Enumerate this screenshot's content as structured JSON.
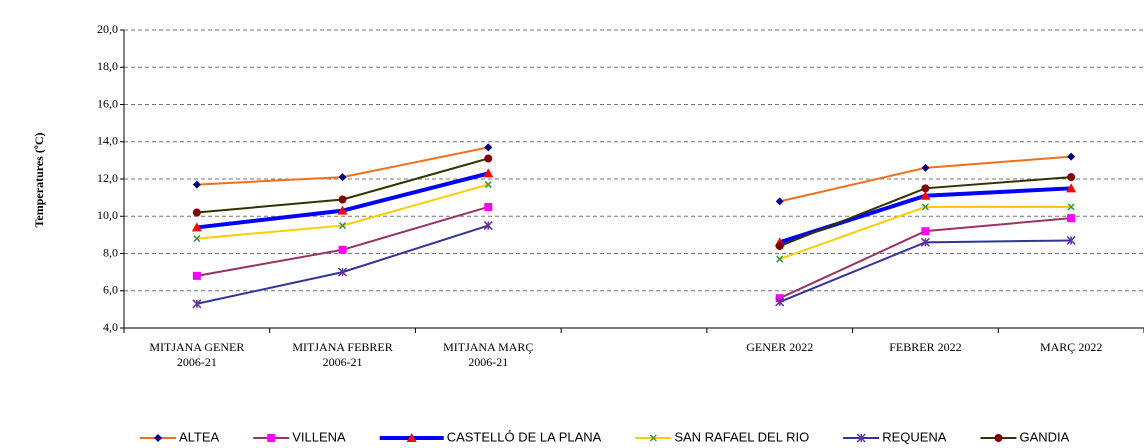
{
  "chart_data": {
    "type": "line",
    "y_label": "Temperatures  (ºC)",
    "categories": [
      [
        "MITJANA GENER",
        "2006-21"
      ],
      [
        "MITJANA FEBRER",
        "2006-21"
      ],
      [
        "MITJANA MARÇ",
        "2006-21"
      ],
      null,
      [
        "GENER 2022"
      ],
      [
        "FEBRER 2022"
      ],
      [
        "MARÇ 2022"
      ]
    ],
    "ylim": [
      4,
      20
    ],
    "yticks": [
      {
        "value": 4,
        "label": "4,0"
      },
      {
        "value": 6,
        "label": "6,0"
      },
      {
        "value": 8,
        "label": "8,0"
      },
      {
        "value": 10,
        "label": "10,0"
      },
      {
        "value": 12,
        "label": "12,0"
      },
      {
        "value": 14,
        "label": "14,0"
      },
      {
        "value": 16,
        "label": "16,0"
      },
      {
        "value": 18,
        "label": "18,0"
      },
      {
        "value": 20,
        "label": "20,0"
      }
    ],
    "grid": true,
    "legend": "bottom",
    "series": [
      {
        "name": "ALTEA",
        "color": "#f07020",
        "marker": "diamond",
        "marker_color": "#000080",
        "width": 2,
        "values": [
          11.7,
          12.1,
          13.7,
          null,
          10.8,
          12.6,
          13.2
        ]
      },
      {
        "name": "VILLENA",
        "color": "#993366",
        "marker": "square",
        "marker_color": "#ff00ff",
        "width": 2,
        "values": [
          6.8,
          8.2,
          10.5,
          null,
          5.6,
          9.2,
          9.9
        ]
      },
      {
        "name": "CASTELLÓ DE LA PLANA",
        "color": "#0000ff",
        "marker": "triangle",
        "marker_color": "#ff0000",
        "width": 4,
        "values": [
          9.4,
          10.3,
          12.3,
          null,
          8.6,
          11.1,
          11.5
        ]
      },
      {
        "name": "SAN RAFAEL DEL RIO",
        "color": "#ffcc00",
        "marker": "x",
        "marker_color": "#339933",
        "width": 2,
        "values": [
          8.8,
          9.5,
          11.7,
          null,
          7.7,
          10.5,
          10.5
        ]
      },
      {
        "name": "REQUENA",
        "color": "#333399",
        "marker": "star",
        "marker_color": "#663399",
        "width": 2,
        "values": [
          5.3,
          7.0,
          9.5,
          null,
          5.4,
          8.6,
          8.7
        ]
      },
      {
        "name": "GANDIA",
        "color": "#333300",
        "marker": "circle",
        "marker_color": "#800000",
        "width": 2,
        "values": [
          10.2,
          10.9,
          13.1,
          null,
          8.4,
          11.5,
          12.1
        ]
      }
    ]
  }
}
